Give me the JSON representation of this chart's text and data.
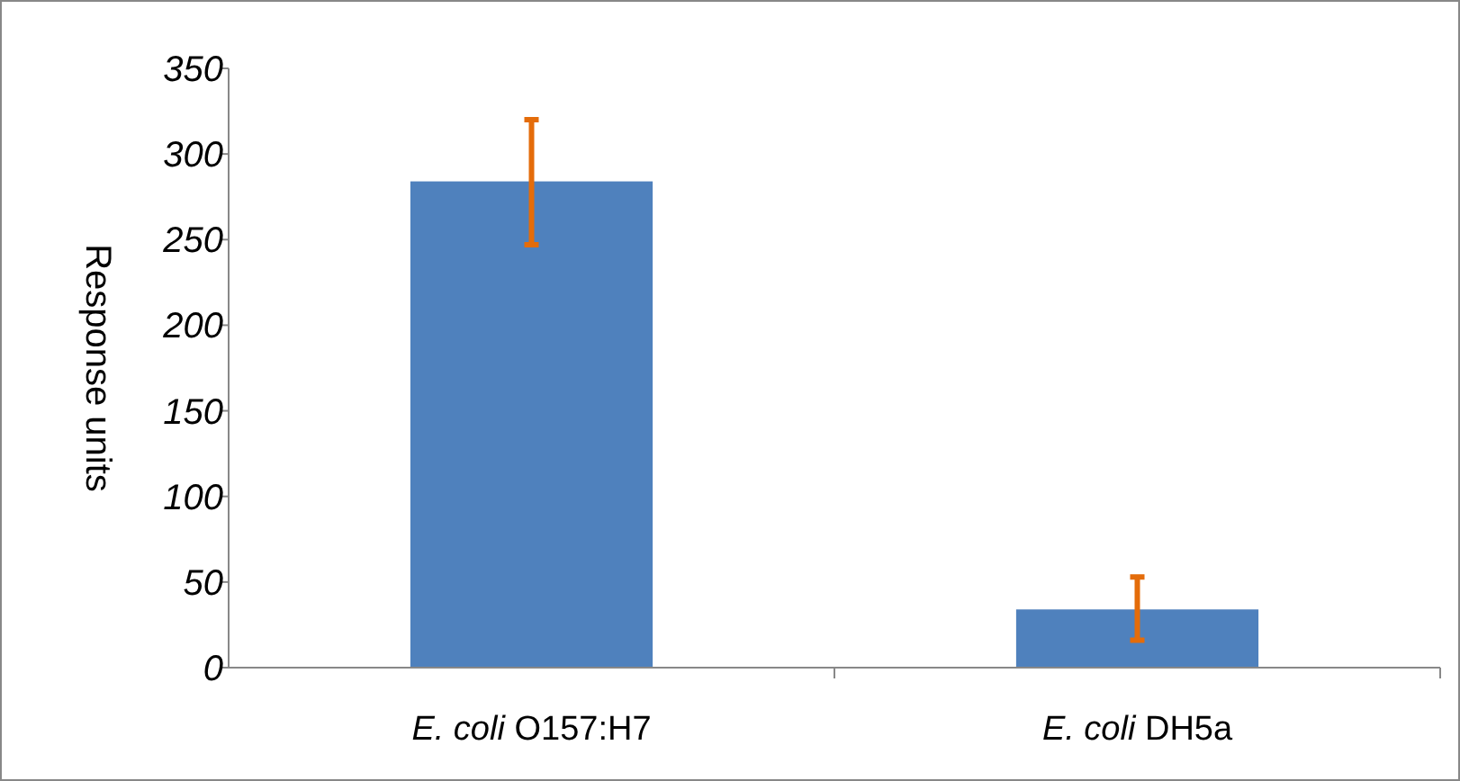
{
  "chart_data": {
    "type": "bar",
    "ylabel": "Response units",
    "categories": [
      "E. coli O157:H7",
      "E. coli DH5a"
    ],
    "values": [
      284,
      34
    ],
    "color": "#4f81bd",
    "errors": [
      [
        247,
        320
      ],
      [
        16,
        53
      ]
    ],
    "ylim": [
      0,
      350
    ],
    "yticks": [
      0,
      50,
      100,
      150,
      200,
      250,
      300,
      350
    ],
    "grid": false
  }
}
